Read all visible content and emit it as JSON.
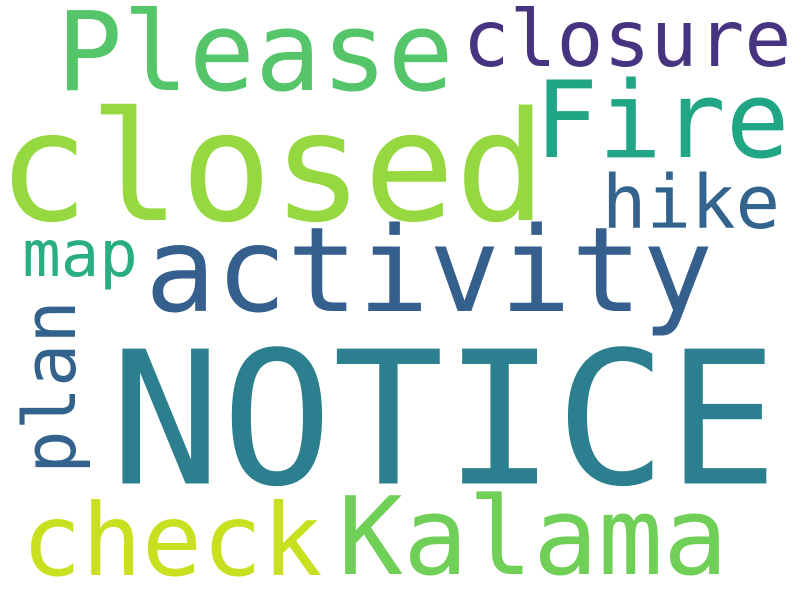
{
  "background_color": "#ffffff",
  "words": {
    "notice": {
      "text": "NOTICE",
      "color": "#2c7f8e"
    },
    "closed": {
      "text": "closed",
      "color": "#95d840"
    },
    "activity": {
      "text": "activity",
      "color": "#355f8d"
    },
    "please": {
      "text": "Please",
      "color": "#54c568"
    },
    "kalama": {
      "text": "Kalama",
      "color": "#70cf57"
    },
    "check": {
      "text": "check",
      "color": "#c8e020"
    },
    "fire": {
      "text": "Fire",
      "color": "#21a685"
    },
    "closure": {
      "text": "closure",
      "color": "#463480"
    },
    "hike": {
      "text": "hike",
      "color": "#32648e"
    },
    "plan": {
      "text": "plan",
      "color": "#33638d"
    },
    "map": {
      "text": "map",
      "color": "#29af7f"
    }
  }
}
